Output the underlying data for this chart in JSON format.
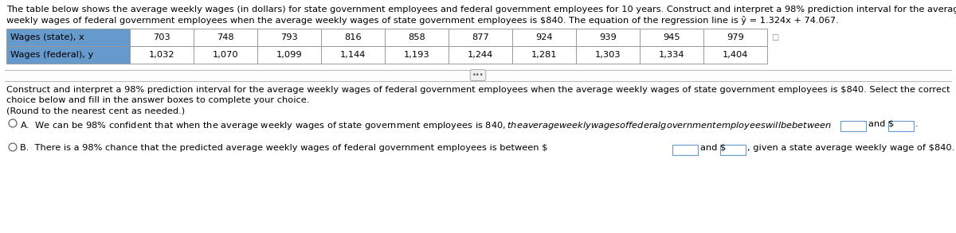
{
  "title_line1": "The table below shows the average weekly wages (in dollars) for state government employees and federal government employees for 10 years. Construct and interpret a 98% prediction interval for the average",
  "title_line2": "weekly wages of federal government employees when the average weekly wages of state government employees is $840. The equation of the regression line is ŷ = 1.324x + 74.067.",
  "row1_label": "Wages (state), x",
  "row2_label": "Wages (federal), y",
  "row1_values": [
    "703",
    "748",
    "793",
    "816",
    "858",
    "877",
    "924",
    "939",
    "945",
    "979"
  ],
  "row2_values": [
    "1,032",
    "1,070",
    "1,099",
    "1,144",
    "1,193",
    "1,244",
    "1,281",
    "1,303",
    "1,334",
    "1,404"
  ],
  "header_bg": "#6699CC",
  "bg_color": "#FFFFFF",
  "font_size": 8.2,
  "q_line1": "Construct and interpret a 98% prediction interval for the average weekly wages of federal government employees when the average weekly wages of state government employees is $840. Select the correct",
  "q_line2": "choice below and fill in the answer boxes to complete your choice.",
  "q_line3": "(Round to the nearest cent as needed.)",
  "choice_a_text": "A.  We can be 98% confident that when the average weekly wages of state government employees is $840, the average weekly wages of federal government employees will be between $",
  "choice_a_end": "and $",
  "choice_a_period": ".",
  "choice_b_text": "B.  There is a 98% chance that the predicted average weekly wages of federal government employees is between $",
  "choice_b_mid": "and $",
  "choice_b_end": ", given a state average weekly wage of $840."
}
